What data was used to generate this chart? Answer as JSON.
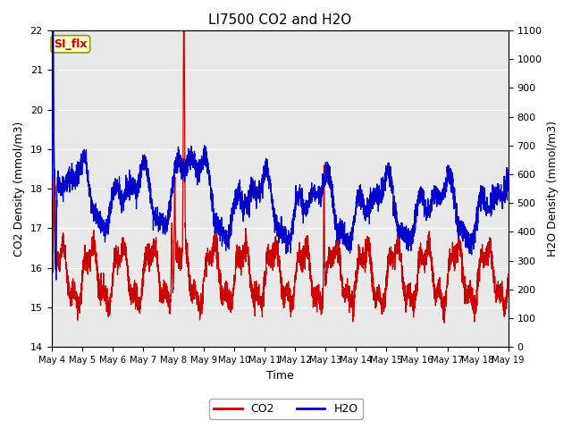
{
  "title": "LI7500 CO2 and H2O",
  "xlabel": "Time",
  "ylabel_left": "CO2 Density (mmol/m3)",
  "ylabel_right": "H2O Density (mmol/m3)",
  "ylim_left": [
    14.0,
    22.0
  ],
  "ylim_right": [
    0,
    1100
  ],
  "yticks_left": [
    14.0,
    15.0,
    16.0,
    17.0,
    18.0,
    19.0,
    20.0,
    21.0,
    22.0
  ],
  "yticks_right": [
    0,
    100,
    200,
    300,
    400,
    500,
    600,
    700,
    800,
    900,
    1000,
    1100
  ],
  "co2_color": "#cc0000",
  "h2o_color": "#0000cc",
  "figure_bg_color": "#ffffff",
  "plot_bg_color": "#e8e8e8",
  "annotation_text": "SI_flx",
  "annotation_color": "#cc0000",
  "annotation_bg": "#ffffcc",
  "annotation_border": "#999900",
  "grid_color": "#ffffff",
  "title_fontsize": 11,
  "label_fontsize": 9,
  "tick_fontsize": 8,
  "legend_fontsize": 9,
  "linewidth": 0.9
}
